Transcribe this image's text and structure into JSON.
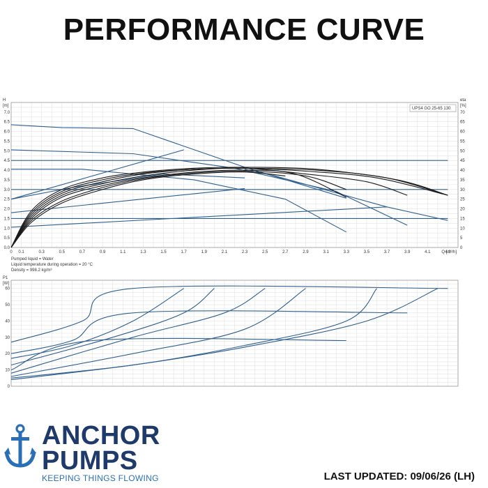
{
  "page_title": "PERFORMANCE CURVE",
  "brand": {
    "line1": "ANCHOR",
    "line2": "PUMPS",
    "tagline": "KEEPING THINGS FLOWING"
  },
  "last_updated": "LAST UPDATED: 09/06/26 (LH)",
  "colors": {
    "series": "#2e5f8f",
    "efficiency": "#1a1a1a",
    "grid": "#e3e3e3",
    "brand": "#1d3a6b",
    "tagline": "#2a6fb6"
  },
  "chart_data": [
    {
      "type": "line",
      "title": "UPS4 GO 25-65 130",
      "ylabel_left": "H [m]",
      "ylabel_right": "eta [%]",
      "xlabel": "Q [m³/h]",
      "xlim": [
        0,
        4.4
      ],
      "ylim": [
        0,
        7.5
      ],
      "y2lim": [
        0,
        75
      ],
      "x_ticks": [
        "0",
        "0.1",
        "0.3",
        "0.5",
        "0.7",
        "0.9",
        "1.1",
        "1.3",
        "1.5",
        "1.7",
        "1.9",
        "2.1",
        "2.3",
        "2.5",
        "2.7",
        "2.9",
        "3.1",
        "3.3",
        "3.5",
        "3.7",
        "3.9",
        "4.1",
        "4.3"
      ],
      "x_tick_values": [
        0,
        0.1,
        0.3,
        0.5,
        0.7,
        0.9,
        1.1,
        1.3,
        1.5,
        1.7,
        1.9,
        2.1,
        2.3,
        2.5,
        2.7,
        2.9,
        3.1,
        3.3,
        3.5,
        3.7,
        3.9,
        4.1,
        4.3
      ],
      "y_ticks": [
        "0.0",
        "0.5",
        "1.0",
        "1.5",
        "2.0",
        "2.5",
        "3.0",
        "3.5",
        "4.0",
        "4.5",
        "5.0",
        "5.5",
        "6.0",
        "6.5",
        "7.0"
      ],
      "y_tick_values": [
        0,
        0.5,
        1,
        1.5,
        2,
        2.5,
        3,
        3.5,
        4,
        4.5,
        5,
        5.5,
        6,
        6.5,
        7
      ],
      "y2_ticks": [
        "0",
        "5",
        "10",
        "15",
        "20",
        "25",
        "30",
        "35",
        "40",
        "45",
        "50",
        "55",
        "60",
        "65",
        "70"
      ],
      "y2_tick_values": [
        0,
        5,
        10,
        15,
        20,
        25,
        30,
        35,
        40,
        45,
        50,
        55,
        60,
        65,
        70
      ],
      "grid": true,
      "legend_position": "top-right",
      "series_head": [
        {
          "points": [
            [
              0,
              6.35
            ],
            [
              0.5,
              6.2
            ],
            [
              1.2,
              6.15
            ],
            [
              2.3,
              4.15
            ],
            [
              3.3,
              2.55
            ]
          ]
        },
        {
          "points": [
            [
              0,
              5.05
            ],
            [
              1.2,
              4.85
            ],
            [
              2.2,
              4.1
            ],
            [
              3.2,
              2.9
            ],
            [
              3.9,
              1.15
            ]
          ]
        },
        {
          "points": [
            [
              0,
              4.05
            ],
            [
              0.7,
              4.05
            ],
            [
              1.8,
              3.5
            ],
            [
              2.7,
              2.5
            ],
            [
              3.3,
              0.8
            ]
          ]
        },
        {
          "points": [
            [
              0,
              4.5
            ],
            [
              4.3,
              4.5
            ]
          ]
        },
        {
          "points": [
            [
              0,
              3.0
            ],
            [
              4.3,
              3.0
            ]
          ]
        },
        {
          "points": [
            [
              0,
              1.5
            ],
            [
              4.3,
              1.5
            ]
          ]
        },
        {
          "points": [
            [
              0,
              2.5
            ],
            [
              1.7,
              5.05
            ]
          ]
        },
        {
          "points": [
            [
              0,
              1.8
            ],
            [
              2.3,
              3.05
            ]
          ]
        },
        {
          "points": [
            [
              0,
              1.05
            ],
            [
              3.7,
              2.1
            ],
            [
              4.3,
              1.4
            ]
          ]
        },
        {
          "points": [
            [
              2.3,
              4.05
            ],
            [
              2.6,
              3.7
            ],
            [
              3.7,
              2.1
            ]
          ]
        },
        {
          "points": [
            [
              0,
              2.5
            ],
            [
              0.6,
              3.1
            ],
            [
              1.5,
              3.8
            ],
            [
              2.3,
              3.6
            ]
          ]
        }
      ],
      "series_eta": [
        {
          "points": [
            [
              0,
              0
            ],
            [
              0.2,
              15
            ],
            [
              0.5,
              26
            ],
            [
              0.9,
              32
            ],
            [
              1.3,
              36
            ],
            [
              1.8,
              39
            ],
            [
              2.3,
              40
            ],
            [
              2.8,
              38
            ],
            [
              3.3,
              26
            ]
          ]
        },
        {
          "points": [
            [
              0,
              0
            ],
            [
              0.2,
              16
            ],
            [
              0.5,
              27
            ],
            [
              0.9,
              33
            ],
            [
              1.3,
              37
            ],
            [
              1.8,
              40
            ],
            [
              2.3,
              41
            ],
            [
              2.9,
              38
            ],
            [
              3.5,
              34
            ],
            [
              3.9,
              27
            ]
          ]
        },
        {
          "points": [
            [
              0,
              0
            ],
            [
              0.2,
              17
            ],
            [
              0.5,
              28
            ],
            [
              0.9,
              34
            ],
            [
              1.3,
              38
            ],
            [
              1.8,
              40.5
            ],
            [
              2.3,
              41
            ],
            [
              2.9,
              39.5
            ],
            [
              3.6,
              36
            ],
            [
              4.3,
              27
            ]
          ]
        },
        {
          "points": [
            [
              0,
              0
            ],
            [
              0.2,
              18
            ],
            [
              0.5,
              29
            ],
            [
              0.9,
              35
            ],
            [
              1.3,
              38.5
            ],
            [
              1.8,
              40.5
            ],
            [
              2.3,
              41
            ],
            [
              3.0,
              40
            ],
            [
              3.7,
              36
            ],
            [
              4.3,
              27
            ]
          ]
        },
        {
          "points": [
            [
              0,
              0
            ],
            [
              0.2,
              19
            ],
            [
              0.5,
              30
            ],
            [
              0.9,
              36
            ],
            [
              1.3,
              39
            ],
            [
              1.8,
              41
            ],
            [
              2.3,
              41.5
            ],
            [
              3.0,
              40.5
            ],
            [
              3.8,
              35
            ],
            [
              4.3,
              27
            ]
          ]
        },
        {
          "points": [
            [
              0,
              0
            ],
            [
              0.2,
              14
            ],
            [
              0.5,
              24
            ],
            [
              0.9,
              31
            ],
            [
              1.3,
              35.5
            ],
            [
              1.8,
              38.5
            ],
            [
              2.3,
              39.5
            ],
            [
              2.9,
              37
            ],
            [
              3.3,
              30
            ]
          ]
        },
        {
          "points": [
            [
              0,
              0
            ],
            [
              0.2,
              13
            ],
            [
              0.5,
              23
            ],
            [
              0.9,
              30
            ],
            [
              1.3,
              35
            ],
            [
              1.8,
              38
            ],
            [
              2.3,
              39
            ],
            [
              2.7,
              37
            ]
          ]
        }
      ],
      "notes": [
        "Pumped liquid = Water",
        "Liquid temperature during operation = 20 °C",
        "Density = 998.2 kg/m³"
      ]
    },
    {
      "type": "line",
      "ylabel_left": "P1 [W]",
      "xlim": [
        0,
        4.4
      ],
      "ylim": [
        0,
        65
      ],
      "y_ticks": [
        "0",
        "10",
        "20",
        "30",
        "40",
        "50",
        "60"
      ],
      "y_tick_values": [
        0,
        10,
        20,
        30,
        40,
        50,
        60
      ],
      "grid": true,
      "series_power": [
        {
          "points": [
            [
              0,
              27
            ],
            [
              0.7,
              40
            ],
            [
              1.2,
              60
            ],
            [
              4.3,
              60
            ]
          ]
        },
        {
          "points": [
            [
              0,
              20
            ],
            [
              0.6,
              28
            ],
            [
              1.2,
              45
            ],
            [
              3.9,
              45
            ]
          ]
        },
        {
          "points": [
            [
              0,
              17
            ],
            [
              0.6,
              25
            ],
            [
              1.2,
              40
            ],
            [
              1.7,
              60
            ]
          ]
        },
        {
          "points": [
            [
              0,
              10
            ],
            [
              0.8,
              28
            ],
            [
              3.3,
              28
            ]
          ]
        },
        {
          "points": [
            [
              0,
              13
            ],
            [
              1.0,
              30
            ],
            [
              1.7,
              45
            ],
            [
              2.0,
              60
            ]
          ]
        },
        {
          "points": [
            [
              0,
              8
            ],
            [
              1.2,
              30
            ],
            [
              2.1,
              45
            ],
            [
              2.5,
              60
            ]
          ]
        },
        {
          "points": [
            [
              0,
              6
            ],
            [
              1.2,
              20
            ],
            [
              2.3,
              35
            ],
            [
              2.9,
              60
            ]
          ]
        },
        {
          "points": [
            [
              0,
              5
            ],
            [
              1.2,
              13
            ],
            [
              2.3,
              25
            ],
            [
              3.3,
              40
            ],
            [
              3.6,
              60
            ]
          ]
        },
        {
          "points": [
            [
              0,
              4
            ],
            [
              1.2,
              13
            ],
            [
              2.3,
              24
            ],
            [
              3.5,
              40
            ],
            [
              4.2,
              60
            ]
          ]
        }
      ]
    }
  ]
}
